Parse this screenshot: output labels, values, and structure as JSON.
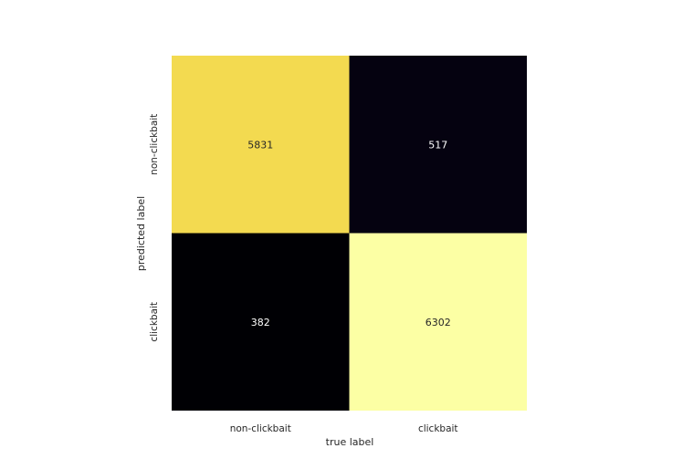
{
  "chart_data": {
    "type": "heatmap",
    "title": "",
    "xlabel": "true label",
    "ylabel": "predicted label",
    "x_categories": [
      "non-clickbait",
      "clickbait"
    ],
    "y_categories": [
      "non-clickbait",
      "clickbait"
    ],
    "values": [
      [
        5831,
        517
      ],
      [
        382,
        6302
      ]
    ],
    "colormap": "inferno",
    "colorbar": false,
    "grid": false,
    "text_colors": {
      "on_light": "#262626",
      "on_dark": "#ffffff"
    }
  }
}
